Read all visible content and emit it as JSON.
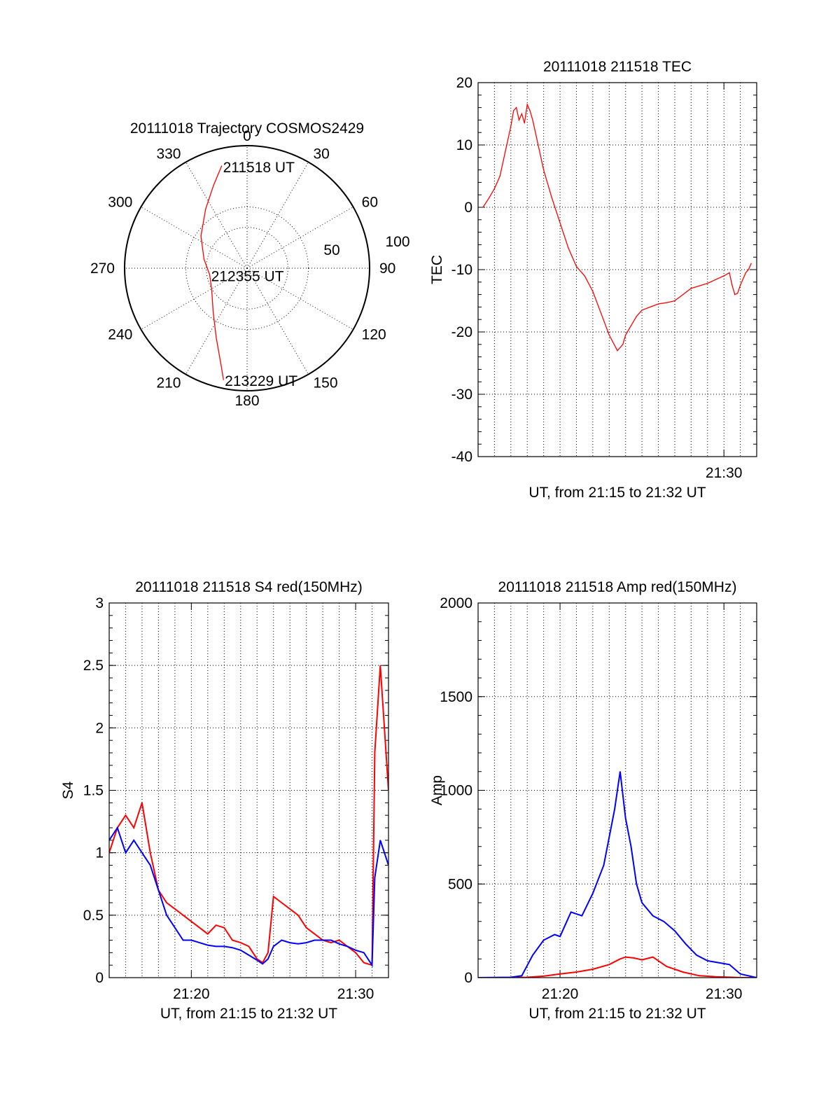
{
  "chart_data": [
    {
      "type": "polar",
      "title": "20111018 Trajectory COSMOS2429",
      "angle_labels": [
        "0",
        "30",
        "60",
        "90",
        "120",
        "150",
        "180",
        "210",
        "240",
        "270",
        "300",
        "330"
      ],
      "radial_labels": [
        "50",
        "100"
      ],
      "rlim": [
        0,
        100
      ],
      "grid": true,
      "series": [
        {
          "color": "#ff0000",
          "points": [
            {
              "az": 346,
              "r": 86
            },
            {
              "az": 338,
              "r": 73
            },
            {
              "az": 325,
              "r": 59
            },
            {
              "az": 305,
              "r": 46
            },
            {
              "az": 282,
              "r": 36
            },
            {
              "az": 260,
              "r": 31
            },
            {
              "az": 238,
              "r": 34
            },
            {
              "az": 218,
              "r": 45
            },
            {
              "az": 204,
              "r": 62
            },
            {
              "az": 195,
              "r": 82
            },
            {
              "az": 192,
              "r": 93
            }
          ]
        }
      ],
      "annotations": [
        {
          "text": "211518 UT",
          "az": 346,
          "r": 86
        },
        {
          "text": "212355 UT",
          "az": 260,
          "r": 31
        },
        {
          "text": "213229 UT",
          "az": 192,
          "r": 93
        }
      ]
    },
    {
      "type": "line",
      "title": "20111018 211518 TEC",
      "xlabel": "UT, from 21:15 to 21:32 UT",
      "ylabel": "TEC",
      "xlim": [
        "21:15",
        "21:32"
      ],
      "ylim": [
        -40,
        20
      ],
      "yticks": [
        "20",
        "10",
        "0",
        "-10",
        "-20",
        "-30",
        "-40"
      ],
      "xticks": [
        {
          "t": "21:30",
          "label": "21:30"
        }
      ],
      "grid": true,
      "series": [
        {
          "color": "#ff0000",
          "x": [
            "21:15:18",
            "21:15:40",
            "21:16:00",
            "21:16:20",
            "21:16:40",
            "21:17:00",
            "21:17:10",
            "21:17:20",
            "21:17:30",
            "21:17:40",
            "21:17:50",
            "21:18:00",
            "21:18:10",
            "21:18:20",
            "21:18:40",
            "21:19:00",
            "21:19:30",
            "21:20:00",
            "21:20:30",
            "21:21:00",
            "21:21:30",
            "21:22:00",
            "21:22:30",
            "21:23:00",
            "21:23:30",
            "21:23:50",
            "21:24:00",
            "21:24:20",
            "21:24:40",
            "21:25:00",
            "21:25:30",
            "21:26:00",
            "21:26:30",
            "21:27:00",
            "21:27:30",
            "21:28:00",
            "21:28:30",
            "21:29:00",
            "21:29:30",
            "21:30:00",
            "21:30:20",
            "21:30:30",
            "21:30:40",
            "21:30:50",
            "21:31:00",
            "21:31:10",
            "21:31:20",
            "21:31:30",
            "21:31:40"
          ],
          "y": [
            0.0,
            1.5,
            3.0,
            5.0,
            9.0,
            13.0,
            15.5,
            16.0,
            14.0,
            15.0,
            13.5,
            16.5,
            15.5,
            14.0,
            10.0,
            6.0,
            1.5,
            -2.5,
            -6.5,
            -9.5,
            -11.0,
            -13.5,
            -17.0,
            -20.5,
            -23.0,
            -22.0,
            -20.5,
            -19.0,
            -17.5,
            -16.5,
            -16.0,
            -15.5,
            -15.3,
            -15.0,
            -14.0,
            -13.0,
            -12.6,
            -12.2,
            -11.6,
            -11.0,
            -10.5,
            -12.5,
            -14.0,
            -13.8,
            -12.5,
            -11.5,
            -10.5,
            -10.0,
            -9.0
          ]
        }
      ]
    },
    {
      "type": "line",
      "title": "20111018 211518 S4 red(150MHz)",
      "xlabel": "UT, from 21:15 to 21:32 UT",
      "ylabel": "S4",
      "xlim": [
        "21:15",
        "21:32"
      ],
      "ylim": [
        0,
        3
      ],
      "yticks": [
        "3",
        "2.5",
        "2",
        "1.5",
        "1",
        "0.5",
        "0"
      ],
      "xticks": [
        {
          "t": "21:20",
          "label": "21:20"
        },
        {
          "t": "21:30",
          "label": "21:30"
        }
      ],
      "grid": true,
      "series": [
        {
          "color": "#ff0000",
          "x": [
            "21:15:00",
            "21:15:30",
            "21:16:00",
            "21:16:30",
            "21:17:00",
            "21:17:30",
            "21:18:00",
            "21:18:30",
            "21:19:00",
            "21:19:30",
            "21:20:00",
            "21:20:30",
            "21:21:00",
            "21:21:30",
            "21:22:00",
            "21:22:30",
            "21:23:00",
            "21:23:30",
            "21:24:00",
            "21:24:20",
            "21:24:40",
            "21:25:00",
            "21:25:30",
            "21:26:00",
            "21:26:30",
            "21:27:00",
            "21:27:30",
            "21:28:00",
            "21:28:30",
            "21:29:00",
            "21:29:30",
            "21:30:00",
            "21:30:30",
            "21:31:00",
            "21:31:10",
            "21:31:30",
            "21:32:00"
          ],
          "y": [
            1.0,
            1.2,
            1.3,
            1.2,
            1.4,
            1.0,
            0.7,
            0.6,
            0.55,
            0.5,
            0.45,
            0.4,
            0.35,
            0.42,
            0.4,
            0.3,
            0.28,
            0.25,
            0.15,
            0.12,
            0.2,
            0.65,
            0.6,
            0.55,
            0.5,
            0.4,
            0.35,
            0.3,
            0.28,
            0.3,
            0.25,
            0.2,
            0.12,
            0.1,
            1.8,
            2.5,
            1.5
          ]
        },
        {
          "color": "#0000ff",
          "x": [
            "21:15:00",
            "21:15:30",
            "21:16:00",
            "21:16:30",
            "21:17:00",
            "21:17:30",
            "21:18:00",
            "21:18:30",
            "21:19:00",
            "21:19:30",
            "21:20:00",
            "21:20:30",
            "21:21:00",
            "21:21:30",
            "21:22:00",
            "21:22:30",
            "21:23:00",
            "21:23:30",
            "21:24:00",
            "21:24:20",
            "21:24:40",
            "21:25:00",
            "21:25:30",
            "21:26:00",
            "21:26:30",
            "21:27:00",
            "21:27:30",
            "21:28:00",
            "21:28:30",
            "21:29:00",
            "21:29:30",
            "21:30:00",
            "21:30:30",
            "21:31:00",
            "21:31:10",
            "21:31:30",
            "21:32:00"
          ],
          "y": [
            1.1,
            1.2,
            1.0,
            1.1,
            1.0,
            0.9,
            0.7,
            0.5,
            0.4,
            0.3,
            0.3,
            0.28,
            0.26,
            0.25,
            0.25,
            0.24,
            0.22,
            0.18,
            0.14,
            0.11,
            0.15,
            0.25,
            0.3,
            0.28,
            0.27,
            0.28,
            0.3,
            0.3,
            0.3,
            0.27,
            0.25,
            0.22,
            0.2,
            0.1,
            0.8,
            1.1,
            0.9
          ]
        }
      ]
    },
    {
      "type": "line",
      "title": "20111018 211518 Amp red(150MHz)",
      "xlabel": "UT, from 21:15 to 21:32 UT",
      "ylabel": "Amp",
      "xlim": [
        "21:15",
        "21:32"
      ],
      "ylim": [
        0,
        2000
      ],
      "yticks": [
        "2000",
        "1500",
        "1000",
        "500",
        "0"
      ],
      "xticks": [
        {
          "t": "21:20",
          "label": "21:20"
        },
        {
          "t": "21:30",
          "label": "21:30"
        }
      ],
      "grid": true,
      "series": [
        {
          "color": "#ff0000",
          "x": [
            "21:15:00",
            "21:17:00",
            "21:18:00",
            "21:19:00",
            "21:20:00",
            "21:21:00",
            "21:22:00",
            "21:23:00",
            "21:23:40",
            "21:24:00",
            "21:24:30",
            "21:25:00",
            "21:25:40",
            "21:26:30",
            "21:27:30",
            "21:28:30",
            "21:29:30",
            "21:30:30",
            "21:31:00",
            "21:32:00"
          ],
          "y": [
            0,
            0,
            2,
            8,
            20,
            30,
            45,
            70,
            100,
            110,
            105,
            95,
            110,
            60,
            30,
            10,
            5,
            2,
            0,
            0
          ]
        },
        {
          "color": "#0000ff",
          "x": [
            "21:15:00",
            "21:17:00",
            "21:17:40",
            "21:18:20",
            "21:19:00",
            "21:19:40",
            "21:20:00",
            "21:20:40",
            "21:21:20",
            "21:22:00",
            "21:22:40",
            "21:23:00",
            "21:23:20",
            "21:23:40",
            "21:24:00",
            "21:24:20",
            "21:24:40",
            "21:25:00",
            "21:25:40",
            "21:26:20",
            "21:27:00",
            "21:27:40",
            "21:28:20",
            "21:29:00",
            "21:29:40",
            "21:30:20",
            "21:30:40",
            "21:31:00",
            "21:32:00"
          ],
          "y": [
            0,
            2,
            10,
            120,
            200,
            230,
            220,
            350,
            330,
            450,
            600,
            750,
            900,
            1100,
            850,
            700,
            500,
            400,
            330,
            300,
            250,
            180,
            120,
            90,
            80,
            70,
            45,
            20,
            0
          ]
        }
      ]
    }
  ]
}
